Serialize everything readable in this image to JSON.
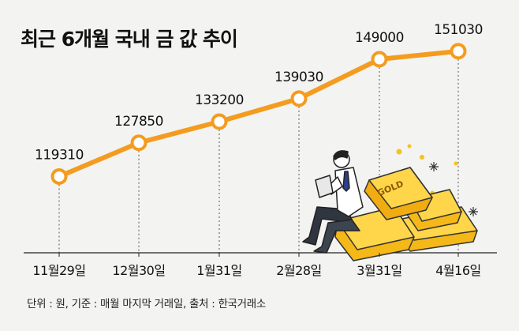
{
  "chart_data": {
    "type": "line",
    "title": "최근 6개월 국내 금 값 추이",
    "categories": [
      "11월29일",
      "12월30일",
      "1월31일",
      "2월28일",
      "3월31일",
      "4월16일"
    ],
    "values": [
      119310,
      127850,
      133200,
      139030,
      149000,
      151030
    ],
    "value_labels": [
      "119310",
      "127850",
      "133200",
      "139030",
      "149000",
      "151030"
    ],
    "xlabel": "",
    "ylabel": "",
    "ylim": [
      100000,
      160000
    ],
    "grid": false,
    "footnote": "단위 : 원, 기준 : 매월 마지막 거래일, 출처 : 한국거래소",
    "colors": {
      "line": "#f39c1f",
      "marker_fill": "#ffffff",
      "text": "#111111"
    },
    "illustration_icon": "man-sitting-on-gold-bars-illustration",
    "illustration_text": "GOLD"
  }
}
